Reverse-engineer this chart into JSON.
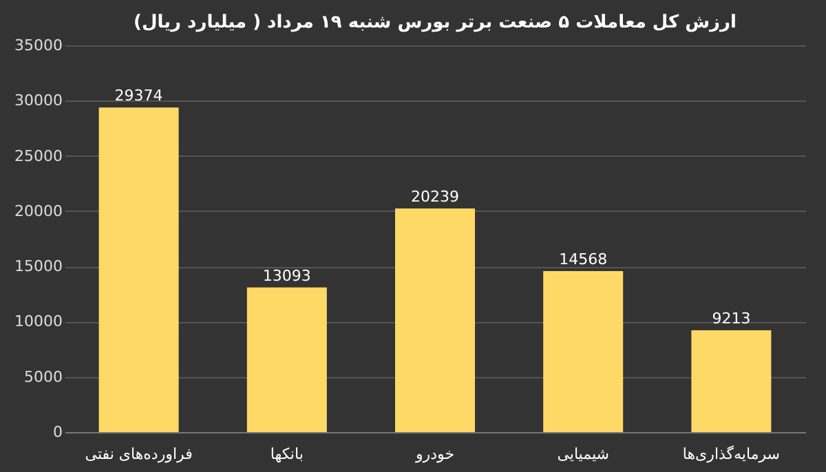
{
  "chart_data": {
    "type": "bar",
    "title": "ارزش کل معاملات ۵ صنعت برتر بورس شنبه ۱۹ مرداد ( میلیارد ریال)",
    "categories": [
      "فراورده‌های نفتی",
      "بانکها",
      "خودرو",
      "شیمیایی",
      "سرمایه‌گذاری‌ها"
    ],
    "values": [
      29374,
      13093,
      20239,
      14568,
      9213
    ],
    "color": "#ffd966",
    "ylim": [
      0,
      35000
    ],
    "yticks": [
      0,
      5000,
      10000,
      15000,
      20000,
      25000,
      30000,
      35000
    ],
    "grid": "y",
    "data_labels": true
  }
}
